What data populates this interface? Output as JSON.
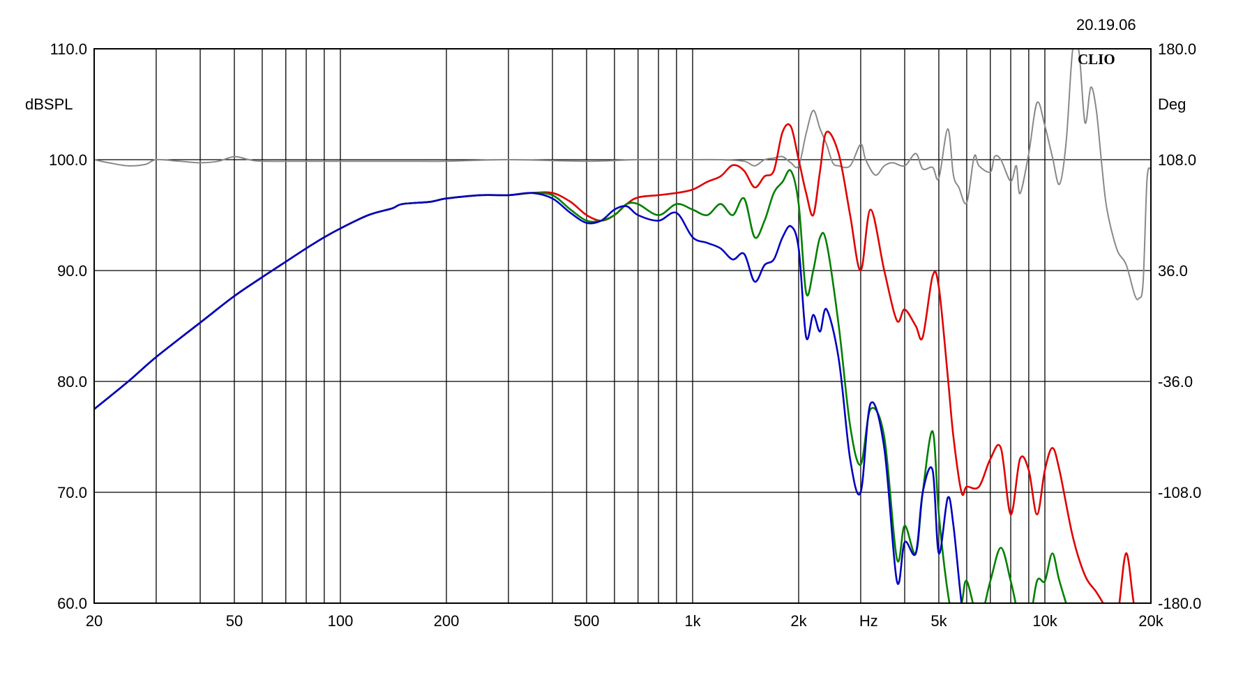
{
  "header": {
    "timestamp": "20.19.06",
    "logo": "CLIO"
  },
  "chart_data": {
    "type": "line",
    "x_scale": "log",
    "xlim": [
      20,
      20000
    ],
    "ylim": [
      60,
      110
    ],
    "y2lim": [
      -180,
      180
    ],
    "ylabel": "dBSPL",
    "y2label": "Deg",
    "xlabel": "Hz",
    "grid": true,
    "x_tick_labels": [
      {
        "value": 20,
        "label": "20"
      },
      {
        "value": 50,
        "label": "50"
      },
      {
        "value": 100,
        "label": "100"
      },
      {
        "value": 200,
        "label": "200"
      },
      {
        "value": 500,
        "label": "500"
      },
      {
        "value": 1000,
        "label": "1k"
      },
      {
        "value": 2000,
        "label": "2k"
      },
      {
        "value": 5000,
        "label": "5k"
      },
      {
        "value": 10000,
        "label": "10k"
      },
      {
        "value": 20000,
        "label": "20k"
      }
    ],
    "y_tick_labels": [
      "60.0",
      "70.0",
      "80.0",
      "90.0",
      "100.0",
      "110.0"
    ],
    "y2_tick_labels": [
      "-180.0",
      "-108.0",
      "-36.0",
      "36.0",
      "108.0",
      "180.0"
    ],
    "series": [
      {
        "color": "#e00000",
        "x": [
          20,
          25,
          30,
          40,
          50,
          60,
          70,
          80,
          90,
          100,
          120,
          140,
          150,
          180,
          200,
          250,
          300,
          350,
          400,
          450,
          500,
          550,
          600,
          650,
          700,
          800,
          900,
          1000,
          1100,
          1200,
          1300,
          1400,
          1500,
          1600,
          1700,
          1800,
          1900,
          2000,
          2100,
          2200,
          2300,
          2400,
          2600,
          2800,
          3000,
          3200,
          3500,
          3800,
          4000,
          4300,
          4500,
          4800,
          5000,
          5300,
          5500,
          5800,
          6000,
          6500,
          7000,
          7500,
          8000,
          8500,
          9000,
          9500,
          10000,
          10500,
          11000,
          12000,
          13000,
          14000,
          15000,
          16000,
          17000,
          18000,
          19000
        ],
        "y": [
          77.5,
          80.0,
          82.2,
          85.3,
          87.7,
          89.4,
          90.8,
          92.0,
          93.0,
          93.8,
          95.0,
          95.6,
          96.0,
          96.2,
          96.5,
          96.8,
          96.8,
          97.0,
          97.0,
          96.2,
          95.0,
          94.5,
          95.0,
          96.0,
          96.6,
          96.8,
          97.0,
          97.3,
          98.0,
          98.5,
          99.5,
          99.0,
          97.5,
          98.5,
          99.0,
          102.5,
          103.0,
          100.0,
          97.0,
          95.0,
          99.0,
          102.5,
          100.5,
          95.0,
          90.0,
          95.5,
          90.0,
          85.5,
          86.5,
          85.0,
          84.0,
          89.5,
          88.5,
          80.5,
          75.0,
          70.0,
          70.5,
          70.5,
          73.0,
          74.0,
          68.0,
          73.0,
          72.0,
          68.0,
          72.0,
          74.0,
          72.0,
          66.0,
          62.5,
          61.0,
          59.5,
          58.5,
          64.5,
          59.5,
          59.0
        ]
      },
      {
        "color": "#008000",
        "x": [
          20,
          25,
          30,
          40,
          50,
          60,
          70,
          80,
          90,
          100,
          120,
          140,
          150,
          180,
          200,
          250,
          300,
          350,
          400,
          450,
          500,
          550,
          600,
          650,
          700,
          800,
          900,
          1000,
          1100,
          1200,
          1300,
          1400,
          1500,
          1600,
          1700,
          1800,
          1900,
          2000,
          2100,
          2200,
          2300,
          2400,
          2600,
          2800,
          3000,
          3200,
          3500,
          3800,
          4000,
          4300,
          4500,
          4800,
          5000,
          5300,
          5500,
          5800,
          6000,
          6500,
          7000,
          7500,
          8000,
          8500,
          9000,
          9500,
          10000,
          10500,
          11000,
          12000
        ],
        "y": [
          77.5,
          80.0,
          82.2,
          85.3,
          87.7,
          89.4,
          90.8,
          92.0,
          93.0,
          93.8,
          95.0,
          95.6,
          96.0,
          96.2,
          96.5,
          96.8,
          96.8,
          97.0,
          96.8,
          95.5,
          94.5,
          94.5,
          95.0,
          96.0,
          96.0,
          95.0,
          96.0,
          95.5,
          95.0,
          96.0,
          95.0,
          96.5,
          93.0,
          94.5,
          97.0,
          98.0,
          99.0,
          96.0,
          88.0,
          90.0,
          93.0,
          92.5,
          85.0,
          76.0,
          72.5,
          77.5,
          75.0,
          64.0,
          67.0,
          64.5,
          70.0,
          75.5,
          68.0,
          61.0,
          59.0,
          60.0,
          62.0,
          58.5,
          62.0,
          65.0,
          62.0,
          58.5,
          58.0,
          62.0,
          62.0,
          64.5,
          62.0,
          58.0
        ]
      },
      {
        "color": "#0000c0",
        "x": [
          20,
          25,
          30,
          40,
          50,
          60,
          70,
          80,
          90,
          100,
          120,
          140,
          150,
          180,
          200,
          250,
          300,
          350,
          400,
          450,
          500,
          550,
          600,
          650,
          700,
          800,
          900,
          1000,
          1100,
          1200,
          1300,
          1400,
          1500,
          1600,
          1700,
          1800,
          1900,
          2000,
          2100,
          2200,
          2300,
          2400,
          2600,
          2800,
          3000,
          3200,
          3500,
          3800,
          4000,
          4300,
          4500,
          4800,
          5000,
          5300,
          5500,
          5800,
          6000,
          6500
        ],
        "y": [
          77.5,
          80.0,
          82.2,
          85.3,
          87.7,
          89.4,
          90.8,
          92.0,
          93.0,
          93.8,
          95.0,
          95.6,
          96.0,
          96.2,
          96.5,
          96.8,
          96.8,
          97.0,
          96.5,
          95.2,
          94.3,
          94.5,
          95.5,
          95.8,
          95.0,
          94.5,
          95.2,
          93.0,
          92.5,
          92.0,
          91.0,
          91.5,
          89.0,
          90.5,
          91.0,
          93.0,
          94.0,
          92.0,
          84.0,
          86.0,
          84.5,
          86.5,
          82.0,
          73.0,
          70.0,
          78.0,
          74.0,
          62.0,
          65.5,
          64.5,
          70.0,
          72.0,
          64.5,
          69.5,
          67.0,
          60.0,
          57.5,
          57.0
        ]
      },
      {
        "color": "#888888",
        "axis": "right",
        "x": [
          20,
          22,
          25,
          28,
          30,
          35,
          40,
          45,
          50,
          55,
          60,
          80,
          100,
          150,
          200,
          300,
          500,
          700,
          1000,
          1200,
          1400,
          1500,
          1600,
          1700,
          1800,
          1900,
          2000,
          2100,
          2200,
          2300,
          2400,
          2500,
          2600,
          2800,
          3000,
          3100,
          3300,
          3500,
          3700,
          4000,
          4300,
          4500,
          4800,
          5000,
          5300,
          5500,
          5700,
          6000,
          6300,
          6500,
          7000,
          7200,
          7500,
          8000,
          8300,
          8500,
          9000,
          9500,
          10000,
          10500,
          11000,
          11500,
          12000,
          12500,
          13000,
          13500,
          14000,
          14500,
          15000,
          16000,
          17000,
          18000,
          18500,
          19000,
          19500,
          20000
        ],
        "y": [
          108,
          106,
          104,
          105,
          108,
          107,
          106,
          107,
          110,
          108,
          107,
          107,
          107,
          107,
          107,
          108,
          107,
          108,
          108,
          108,
          107,
          104,
          108,
          109,
          110,
          106,
          104,
          125,
          140,
          128,
          118,
          106,
          104,
          104,
          118,
          108,
          98,
          104,
          106,
          104,
          112,
          102,
          103,
          96,
          128,
          98,
          90,
          80,
          110,
          104,
          100,
          110,
          108,
          94,
          104,
          86,
          112,
          145,
          130,
          110,
          92,
          120,
          180,
          178,
          132,
          155,
          140,
          105,
          76,
          50,
          40,
          20,
          18,
          28,
          95,
          102
        ]
      }
    ]
  }
}
